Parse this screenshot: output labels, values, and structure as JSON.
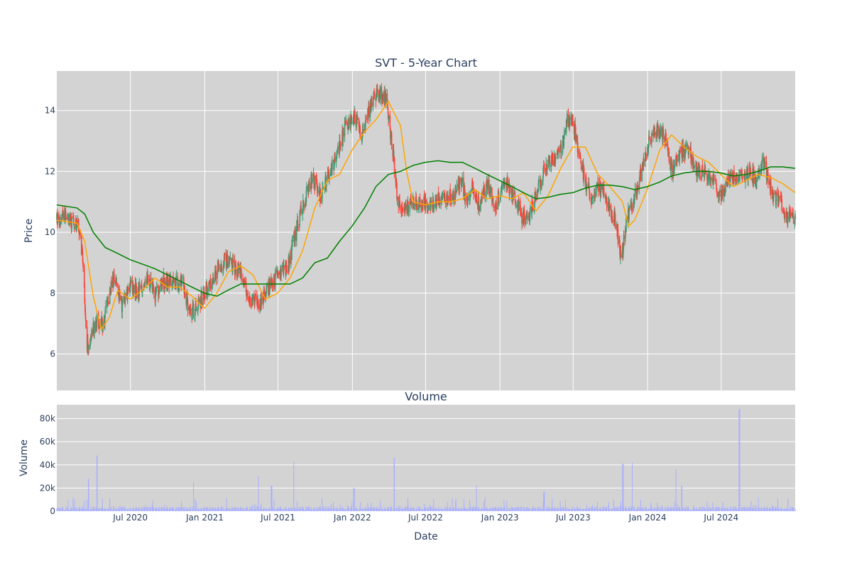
{
  "chart_data": [
    {
      "type": "candlestick",
      "title": "SVT - 5-Year Chart",
      "xlabel": "",
      "ylabel": "Price",
      "x_range": [
        "2020-01-01",
        "2024-12-31"
      ],
      "ylim": [
        4.8,
        15.3
      ],
      "yticks": [
        6,
        8,
        10,
        12,
        14
      ],
      "grid": true,
      "increasing_color": "#3d9970",
      "decreasing_color": "#ff4136",
      "anchors": [
        [
          "2020-01-01",
          10.4
        ],
        [
          "2020-01-20",
          10.6
        ],
        [
          "2020-02-10",
          10.3
        ],
        [
          "2020-02-25",
          10.1
        ],
        [
          "2020-03-05",
          9.2
        ],
        [
          "2020-03-12",
          7.0
        ],
        [
          "2020-03-18",
          6.1
        ],
        [
          "2020-03-25",
          6.6
        ],
        [
          "2020-04-10",
          7.1
        ],
        [
          "2020-04-25",
          6.9
        ],
        [
          "2020-05-10",
          8.0
        ],
        [
          "2020-05-25",
          8.5
        ],
        [
          "2020-06-10",
          7.6
        ],
        [
          "2020-07-01",
          8.2
        ],
        [
          "2020-07-20",
          8.0
        ],
        [
          "2020-08-10",
          8.6
        ],
        [
          "2020-09-01",
          7.9
        ],
        [
          "2020-09-20",
          8.4
        ],
        [
          "2020-10-20",
          8.3
        ],
        [
          "2020-11-05",
          8.5
        ],
        [
          "2020-11-25",
          7.3
        ],
        [
          "2020-12-15",
          7.6
        ],
        [
          "2021-01-10",
          8.2
        ],
        [
          "2021-02-01",
          8.8
        ],
        [
          "2021-02-20",
          9.1
        ],
        [
          "2021-03-10",
          8.9
        ],
        [
          "2021-04-01",
          8.7
        ],
        [
          "2021-04-20",
          7.8
        ],
        [
          "2021-05-20",
          7.7
        ],
        [
          "2021-06-10",
          8.2
        ],
        [
          "2021-07-01",
          8.6
        ],
        [
          "2021-07-25",
          8.8
        ],
        [
          "2021-08-10",
          9.8
        ],
        [
          "2021-08-25",
          10.6
        ],
        [
          "2021-09-10",
          11.3
        ],
        [
          "2021-09-25",
          11.8
        ],
        [
          "2021-10-15",
          11.2
        ],
        [
          "2021-11-05",
          11.9
        ],
        [
          "2021-11-25",
          12.6
        ],
        [
          "2021-12-15",
          13.5
        ],
        [
          "2022-01-05",
          13.8
        ],
        [
          "2022-01-25",
          13.2
        ],
        [
          "2022-02-15",
          14.2
        ],
        [
          "2022-03-05",
          14.6
        ],
        [
          "2022-03-25",
          14.4
        ],
        [
          "2022-04-10",
          12.8
        ],
        [
          "2022-04-22",
          11.2
        ],
        [
          "2022-05-05",
          10.6
        ],
        [
          "2022-05-25",
          10.9
        ],
        [
          "2022-06-15",
          11.0
        ],
        [
          "2022-07-15",
          10.9
        ],
        [
          "2022-08-10",
          11.1
        ],
        [
          "2022-09-10",
          11.2
        ],
        [
          "2022-09-25",
          11.8
        ],
        [
          "2022-10-10",
          11.0
        ],
        [
          "2022-10-25",
          11.5
        ],
        [
          "2022-11-10",
          10.9
        ],
        [
          "2022-12-01",
          11.6
        ],
        [
          "2022-12-20",
          10.8
        ],
        [
          "2023-01-15",
          11.7
        ],
        [
          "2023-02-05",
          11.2
        ],
        [
          "2023-02-25",
          10.5
        ],
        [
          "2023-03-15",
          10.6
        ],
        [
          "2023-04-05",
          11.4
        ],
        [
          "2023-04-25",
          12.2
        ],
        [
          "2023-05-15",
          12.4
        ],
        [
          "2023-06-05",
          12.8
        ],
        [
          "2023-06-15",
          13.7
        ],
        [
          "2023-07-01",
          13.6
        ],
        [
          "2023-07-15",
          12.6
        ],
        [
          "2023-08-01",
          11.6
        ],
        [
          "2023-08-15",
          11.2
        ],
        [
          "2023-09-10",
          11.5
        ],
        [
          "2023-10-01",
          10.7
        ],
        [
          "2023-10-15",
          10.3
        ],
        [
          "2023-10-28",
          9.1
        ],
        [
          "2023-11-10",
          10.4
        ],
        [
          "2023-11-25",
          10.9
        ],
        [
          "2023-12-15",
          11.9
        ],
        [
          "2024-01-05",
          13.0
        ],
        [
          "2024-01-25",
          13.4
        ],
        [
          "2024-02-15",
          13.1
        ],
        [
          "2024-03-01",
          12.0
        ],
        [
          "2024-03-20",
          12.6
        ],
        [
          "2024-04-10",
          12.8
        ],
        [
          "2024-04-25",
          12.1
        ],
        [
          "2024-05-20",
          12.0
        ],
        [
          "2024-06-10",
          11.8
        ],
        [
          "2024-06-25",
          11.1
        ],
        [
          "2024-07-15",
          11.6
        ],
        [
          "2024-08-01",
          11.9
        ],
        [
          "2024-08-20",
          11.8
        ],
        [
          "2024-09-10",
          12.0
        ],
        [
          "2024-09-25",
          11.7
        ],
        [
          "2024-10-15",
          12.3
        ],
        [
          "2024-11-01",
          11.3
        ],
        [
          "2024-11-20",
          11.0
        ],
        [
          "2024-12-10",
          10.6
        ],
        [
          "2024-12-31",
          10.4
        ]
      ],
      "ma_short": {
        "color": "#ffa500",
        "points": [
          [
            "2020-01-01",
            10.4
          ],
          [
            "2020-02-20",
            10.3
          ],
          [
            "2020-03-10",
            9.7
          ],
          [
            "2020-03-31",
            7.9
          ],
          [
            "2020-04-20",
            6.8
          ],
          [
            "2020-05-10",
            7.2
          ],
          [
            "2020-05-31",
            8.1
          ],
          [
            "2020-06-30",
            7.8
          ],
          [
            "2020-07-31",
            8.1
          ],
          [
            "2020-08-31",
            8.5
          ],
          [
            "2020-09-30",
            8.2
          ],
          [
            "2020-10-31",
            8.2
          ],
          [
            "2020-11-30",
            7.9
          ],
          [
            "2020-12-31",
            7.5
          ],
          [
            "2021-01-31",
            8.0
          ],
          [
            "2021-02-28",
            8.7
          ],
          [
            "2021-03-31",
            8.9
          ],
          [
            "2021-04-30",
            8.6
          ],
          [
            "2021-05-31",
            7.8
          ],
          [
            "2021-06-30",
            8.0
          ],
          [
            "2021-07-31",
            8.5
          ],
          [
            "2021-08-31",
            9.4
          ],
          [
            "2021-09-30",
            10.8
          ],
          [
            "2021-10-31",
            11.7
          ],
          [
            "2021-11-30",
            11.9
          ],
          [
            "2021-12-31",
            12.7
          ],
          [
            "2022-01-31",
            13.3
          ],
          [
            "2022-02-28",
            13.7
          ],
          [
            "2022-03-31",
            14.3
          ],
          [
            "2022-04-30",
            13.5
          ],
          [
            "2022-05-15",
            12.0
          ],
          [
            "2022-05-31",
            11.0
          ],
          [
            "2022-06-30",
            10.9
          ],
          [
            "2022-07-31",
            11.0
          ],
          [
            "2022-08-31",
            11.0
          ],
          [
            "2022-09-30",
            11.1
          ],
          [
            "2022-10-31",
            11.4
          ],
          [
            "2022-11-30",
            11.1
          ],
          [
            "2022-12-31",
            11.2
          ],
          [
            "2023-01-31",
            11.1
          ],
          [
            "2023-02-28",
            11.3
          ],
          [
            "2023-03-31",
            10.7
          ],
          [
            "2023-04-30",
            11.2
          ],
          [
            "2023-05-31",
            12.1
          ],
          [
            "2023-06-30",
            12.8
          ],
          [
            "2023-07-31",
            12.8
          ],
          [
            "2023-08-31",
            11.9
          ],
          [
            "2023-09-30",
            11.5
          ],
          [
            "2023-10-31",
            11.0
          ],
          [
            "2023-11-15",
            10.2
          ],
          [
            "2023-11-30",
            10.4
          ],
          [
            "2023-12-31",
            11.4
          ],
          [
            "2024-01-31",
            12.7
          ],
          [
            "2024-02-29",
            13.2
          ],
          [
            "2024-03-31",
            12.8
          ],
          [
            "2024-04-30",
            12.5
          ],
          [
            "2024-05-31",
            12.3
          ],
          [
            "2024-06-30",
            11.9
          ],
          [
            "2024-07-31",
            11.5
          ],
          [
            "2024-08-31",
            11.7
          ],
          [
            "2024-09-30",
            11.9
          ],
          [
            "2024-10-31",
            11.8
          ],
          [
            "2024-11-30",
            11.6
          ],
          [
            "2024-12-31",
            11.3
          ]
        ]
      },
      "ma_long": {
        "color": "#008000",
        "points": [
          [
            "2020-01-01",
            10.9
          ],
          [
            "2020-02-20",
            10.8
          ],
          [
            "2020-03-10",
            10.6
          ],
          [
            "2020-03-31",
            10.0
          ],
          [
            "2020-04-30",
            9.5
          ],
          [
            "2020-05-31",
            9.3
          ],
          [
            "2020-06-30",
            9.1
          ],
          [
            "2020-07-31",
            8.95
          ],
          [
            "2020-08-31",
            8.8
          ],
          [
            "2020-09-30",
            8.6
          ],
          [
            "2020-10-31",
            8.4
          ],
          [
            "2020-11-30",
            8.2
          ],
          [
            "2020-12-31",
            8.0
          ],
          [
            "2021-01-31",
            7.9
          ],
          [
            "2021-02-28",
            8.1
          ],
          [
            "2021-03-31",
            8.3
          ],
          [
            "2021-04-30",
            8.3
          ],
          [
            "2021-05-31",
            8.3
          ],
          [
            "2021-06-30",
            8.3
          ],
          [
            "2021-07-31",
            8.3
          ],
          [
            "2021-08-31",
            8.5
          ],
          [
            "2021-09-30",
            9.0
          ],
          [
            "2021-10-31",
            9.15
          ],
          [
            "2021-11-30",
            9.7
          ],
          [
            "2021-12-31",
            10.2
          ],
          [
            "2022-01-31",
            10.8
          ],
          [
            "2022-02-28",
            11.5
          ],
          [
            "2022-03-31",
            11.9
          ],
          [
            "2022-04-30",
            12.0
          ],
          [
            "2022-05-31",
            12.2
          ],
          [
            "2022-06-30",
            12.3
          ],
          [
            "2022-07-31",
            12.35
          ],
          [
            "2022-08-31",
            12.3
          ],
          [
            "2022-09-30",
            12.3
          ],
          [
            "2022-10-31",
            12.1
          ],
          [
            "2022-11-30",
            11.9
          ],
          [
            "2022-12-31",
            11.7
          ],
          [
            "2023-01-31",
            11.5
          ],
          [
            "2023-02-28",
            11.3
          ],
          [
            "2023-03-31",
            11.1
          ],
          [
            "2023-04-30",
            11.15
          ],
          [
            "2023-05-31",
            11.25
          ],
          [
            "2023-06-30",
            11.3
          ],
          [
            "2023-07-31",
            11.45
          ],
          [
            "2023-08-31",
            11.55
          ],
          [
            "2023-09-30",
            11.55
          ],
          [
            "2023-10-31",
            11.5
          ],
          [
            "2023-11-30",
            11.4
          ],
          [
            "2023-12-31",
            11.5
          ],
          [
            "2024-01-31",
            11.65
          ],
          [
            "2024-02-29",
            11.85
          ],
          [
            "2024-03-31",
            11.95
          ],
          [
            "2024-04-30",
            12.0
          ],
          [
            "2024-05-31",
            12.0
          ],
          [
            "2024-06-30",
            11.95
          ],
          [
            "2024-07-31",
            11.85
          ],
          [
            "2024-08-31",
            11.9
          ],
          [
            "2024-09-30",
            12.0
          ],
          [
            "2024-10-31",
            12.15
          ],
          [
            "2024-11-30",
            12.15
          ],
          [
            "2024-12-31",
            12.1
          ]
        ]
      }
    },
    {
      "type": "bar",
      "title": "Volume",
      "xlabel": "Date",
      "ylabel": "Volume",
      "x_range": [
        "2020-01-01",
        "2024-12-31"
      ],
      "ylim": [
        0,
        92000
      ],
      "yticks": [
        0,
        20000,
        40000,
        60000,
        80000
      ],
      "ytick_labels": [
        "0",
        "20k",
        "40k",
        "60k",
        "80k"
      ],
      "xticks": [
        "2020-07-01",
        "2021-01-01",
        "2021-07-01",
        "2022-01-01",
        "2022-07-01",
        "2023-01-01",
        "2023-07-01",
        "2024-01-01",
        "2024-07-01"
      ],
      "xtick_labels": [
        "Jul 2020",
        "Jan 2021",
        "Jul 2021",
        "Jan 2022",
        "Jul 2022",
        "Jan 2023",
        "Jul 2023",
        "Jan 2024",
        "Jul 2024"
      ],
      "grid": true,
      "color": "#aab0ff",
      "spikes": [
        [
          "2020-03-20",
          28000
        ],
        [
          "2020-04-10",
          48000
        ],
        [
          "2020-12-05",
          25000
        ],
        [
          "2021-05-15",
          30000
        ],
        [
          "2021-06-15",
          22000
        ],
        [
          "2021-08-08",
          43000
        ],
        [
          "2022-01-05",
          20000
        ],
        [
          "2022-04-15",
          46000
        ],
        [
          "2022-11-05",
          22000
        ],
        [
          "2023-04-20",
          17000
        ],
        [
          "2023-11-01",
          41000
        ],
        [
          "2023-11-25",
          42000
        ],
        [
          "2024-03-10",
          36000
        ],
        [
          "2024-03-25",
          22000
        ],
        [
          "2024-08-15",
          88000
        ]
      ]
    }
  ]
}
